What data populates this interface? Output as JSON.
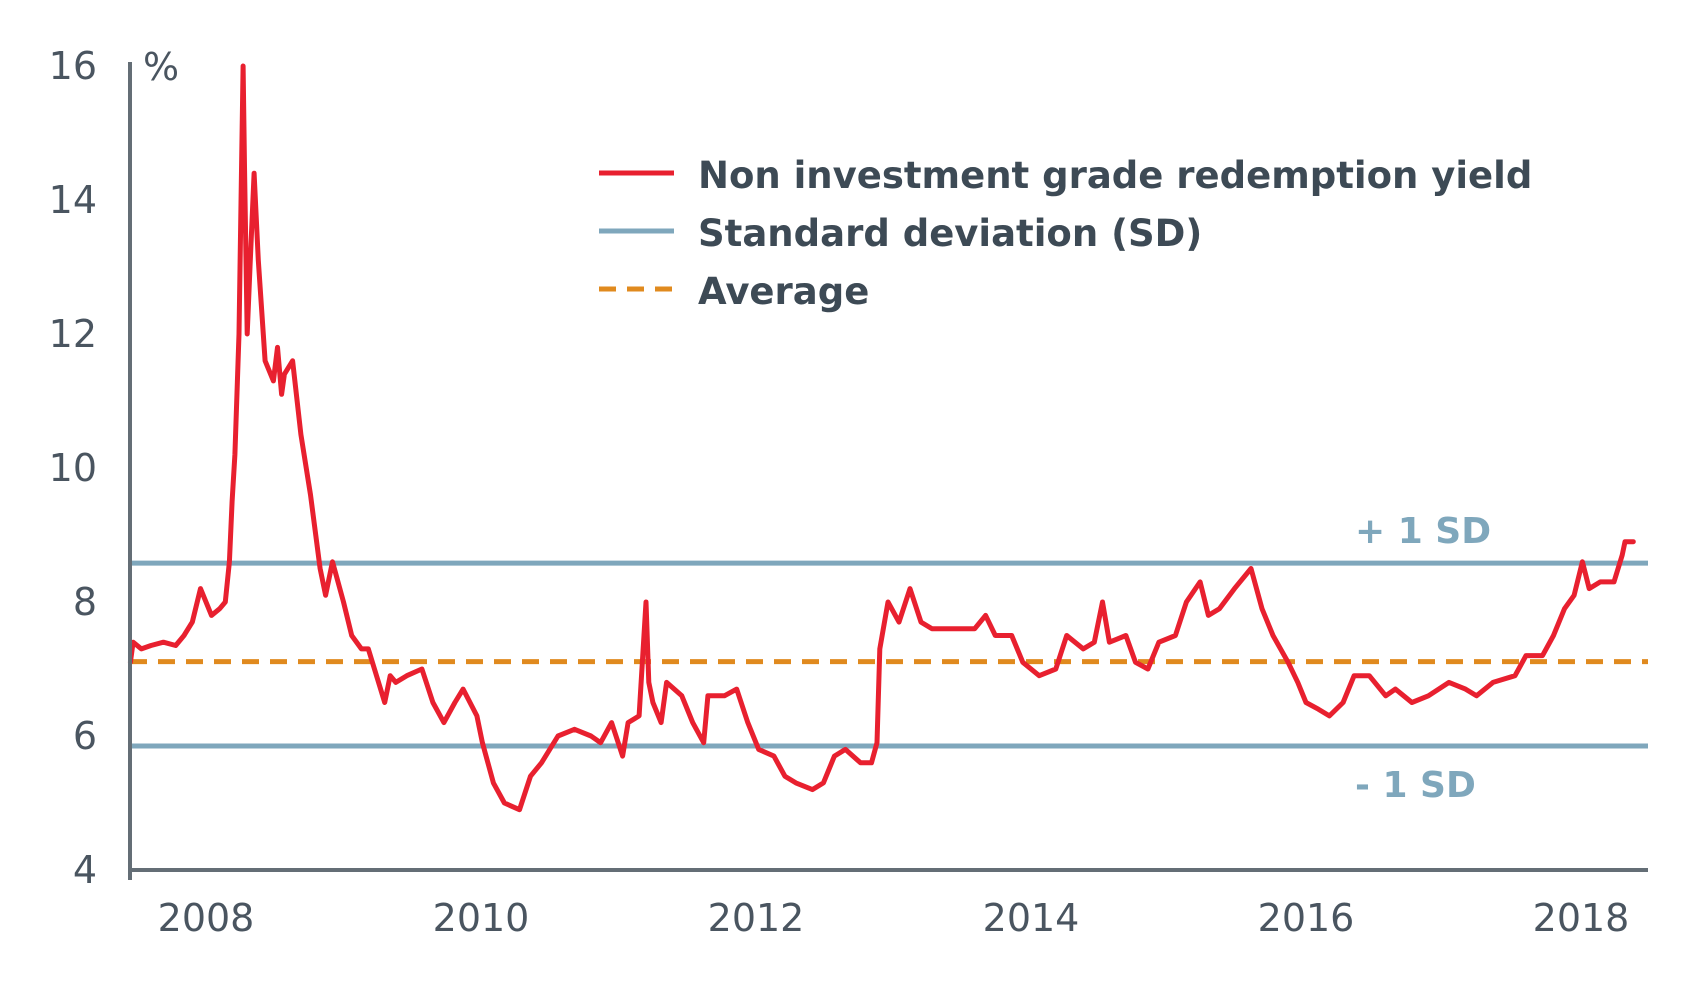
{
  "chart_data": {
    "type": "line",
    "title": "",
    "xlabel": "",
    "ylabel": "%",
    "xlim": [
      2007.45,
      2018.47
    ],
    "ylim": [
      4,
      16
    ],
    "yticks": [
      4,
      6,
      8,
      10,
      12,
      14,
      16
    ],
    "xticks": [
      2008,
      2010,
      2012,
      2014,
      2016,
      2018
    ],
    "grid": false,
    "legend_position": "top-right",
    "colors": {
      "yield": "#e8202f",
      "sd": "#7fa7bc",
      "average": "#e08a1e",
      "axis": "#646e76"
    },
    "legend": [
      "Non investment grade redemption yield",
      "Standard deviation (SD)",
      "Average"
    ],
    "reference_lines": {
      "plus_sd": {
        "label": "+ 1 SD",
        "value": 8.58
      },
      "minus_sd": {
        "label": "- 1 SD",
        "value": 5.85
      },
      "average": {
        "label": "Average",
        "value": 7.11
      }
    },
    "series": [
      {
        "name": "Non investment grade redemption yield",
        "x": [
          2007.45,
          2007.47,
          2007.53,
          2007.6,
          2007.69,
          2007.78,
          2007.84,
          2007.9,
          2007.96,
          2008.04,
          2008.1,
          2008.14,
          2008.17,
          2008.19,
          2008.21,
          2008.24,
          2008.27,
          2008.28,
          2008.3,
          2008.32,
          2008.35,
          2008.38,
          2008.43,
          2008.49,
          2008.52,
          2008.55,
          2008.57,
          2008.63,
          2008.69,
          2008.76,
          2008.83,
          2008.87,
          2008.92,
          2009.0,
          2009.06,
          2009.13,
          2009.18,
          2009.24,
          2009.3,
          2009.34,
          2009.38,
          2009.46,
          2009.57,
          2009.65,
          2009.73,
          2009.81,
          2009.87,
          2009.97,
          2010.01,
          2010.09,
          2010.17,
          2010.28,
          2010.36,
          2010.44,
          2010.56,
          2010.68,
          2010.8,
          2010.87,
          2010.95,
          2011.03,
          2011.07,
          2011.15,
          2011.2,
          2011.22,
          2011.25,
          2011.31,
          2011.35,
          2011.46,
          2011.54,
          2011.62,
          2011.65,
          2011.77,
          2011.86,
          2011.94,
          2012.02,
          2012.13,
          2012.21,
          2012.29,
          2012.41,
          2012.49,
          2012.57,
          2012.65,
          2012.76,
          2012.84,
          2012.88,
          2012.9,
          2012.96,
          2013.04,
          2013.12,
          2013.2,
          2013.28,
          2013.43,
          2013.59,
          2013.67,
          2013.74,
          2013.86,
          2013.94,
          2014.06,
          2014.18,
          2014.26,
          2014.38,
          2014.46,
          2014.52,
          2014.57,
          2014.69,
          2014.76,
          2014.85,
          2014.93,
          2015.05,
          2015.13,
          2015.23,
          2015.29,
          2015.37,
          2015.48,
          2015.6,
          2015.68,
          2015.76,
          2015.87,
          2015.94,
          2016.0,
          2016.09,
          2016.17,
          2016.27,
          2016.35,
          2016.46,
          2016.58,
          2016.65,
          2016.77,
          2016.89,
          2017.04,
          2017.16,
          2017.24,
          2017.36,
          2017.52,
          2017.6,
          2017.72,
          2017.8,
          2017.88,
          2017.95,
          2018.01,
          2018.06,
          2018.14,
          2018.24,
          2018.3,
          2018.32,
          2018.38
        ],
        "y": [
          7.1,
          7.4,
          7.3,
          7.35,
          7.4,
          7.35,
          7.5,
          7.7,
          8.2,
          7.8,
          7.9,
          8.0,
          8.6,
          9.5,
          10.2,
          12.0,
          16.0,
          14.5,
          12.0,
          13.0,
          14.4,
          13.1,
          11.6,
          11.3,
          11.8,
          11.1,
          11.4,
          11.6,
          10.5,
          9.6,
          8.5,
          8.1,
          8.6,
          8.0,
          7.5,
          7.3,
          7.3,
          6.9,
          6.5,
          6.9,
          6.8,
          6.9,
          7.0,
          6.5,
          6.2,
          6.5,
          6.7,
          6.3,
          5.9,
          5.3,
          5.0,
          4.9,
          5.4,
          5.6,
          6.0,
          6.1,
          6.0,
          5.9,
          6.2,
          5.7,
          6.2,
          6.3,
          8.0,
          6.8,
          6.5,
          6.2,
          6.8,
          6.6,
          6.2,
          5.9,
          6.6,
          6.6,
          6.7,
          6.2,
          5.8,
          5.7,
          5.4,
          5.3,
          5.2,
          5.3,
          5.7,
          5.8,
          5.6,
          5.6,
          5.9,
          7.3,
          8.0,
          7.7,
          8.2,
          7.7,
          7.6,
          7.6,
          7.6,
          7.8,
          7.5,
          7.5,
          7.1,
          6.9,
          7.0,
          7.5,
          7.3,
          7.4,
          8.0,
          7.4,
          7.5,
          7.1,
          7.0,
          7.4,
          7.5,
          8.0,
          8.3,
          7.8,
          7.9,
          8.2,
          8.5,
          7.9,
          7.5,
          7.1,
          6.8,
          6.5,
          6.4,
          6.3,
          6.5,
          6.9,
          6.9,
          6.6,
          6.7,
          6.5,
          6.6,
          6.8,
          6.7,
          6.6,
          6.8,
          6.9,
          7.2,
          7.2,
          7.5,
          7.9,
          8.1,
          8.6,
          8.2,
          8.3,
          8.3,
          8.7,
          8.9,
          8.9
        ]
      }
    ]
  }
}
